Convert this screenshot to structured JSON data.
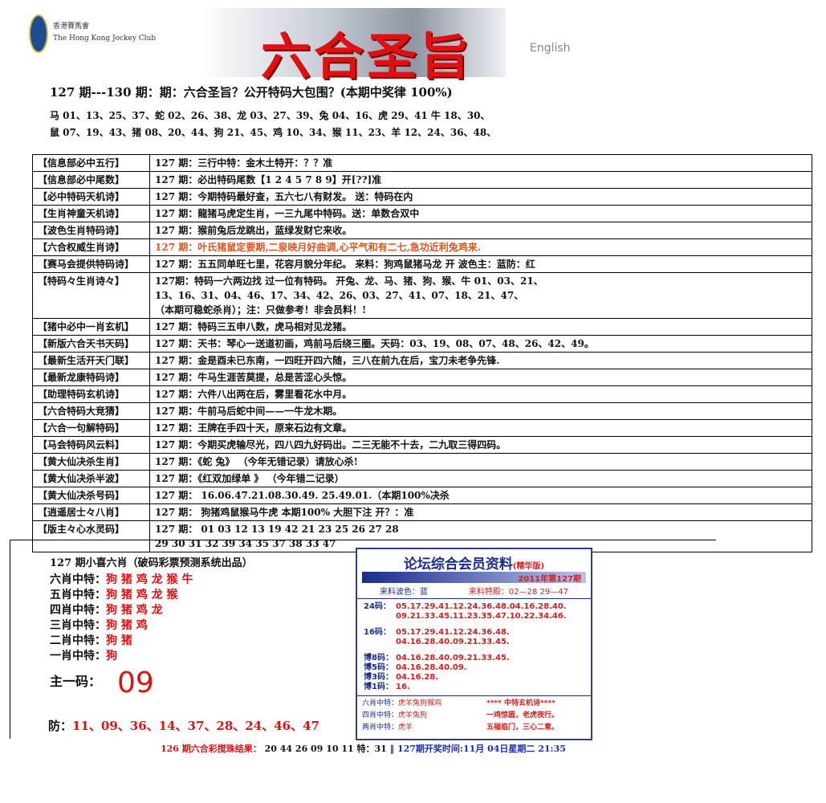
{
  "header": {
    "logo_lines": [
      "香港賽馬會",
      "The Hong Kong Jockey Club"
    ],
    "title": "六合圣旨",
    "english": "English"
  },
  "intro": {
    "heading": "127 期---130 期：期：六合圣旨？公开特码大包围？(本期中奖律 100%)",
    "lines": [
      "马 01、13、25、37、蛇 02、26、38、龙 03、27、39、兔 04、16、虎 29、41 牛 18、30、",
      "鼠 07、19、43、猪 08、20、44、狗 21、45、鸡 10、34、猴 11、23、羊 12、24、36、48、"
    ]
  },
  "table": {
    "rows": [
      {
        "label": "【信息部必中五行】",
        "lines": [
          "127 期：三行中特：金木土特开：？？准"
        ]
      },
      {
        "label": "【信息部必中尾数】",
        "lines": [
          "127 期：必出特码尾数【1 2 4 5 7 8 9】开[??]准"
        ]
      },
      {
        "label": "【必中特码天机诗】",
        "lines": [
          "127 期：今期特码最好查，五六七八有财发。 送：特码在内"
        ]
      },
      {
        "label": "【生肖神童天机诗】",
        "lines": [
          "127 期：龍猪马虎定生肖，一三九尾中特码。送：单数合双中"
        ]
      },
      {
        "label": "【波色生肖特码诗】",
        "lines": [
          "127 期：猴前兔后龙跳出，蓝绿发财它来收。"
        ]
      },
      {
        "label": "【六合权威生肖诗】",
        "lines": [
          "127 期：叶氏猪鼠定要期,二泉映月好曲调,心平气和有二七,急功近利兔鸡来."
        ],
        "color": "#e0531a"
      },
      {
        "label": "【赛马会提供特码诗】",
        "lines": [
          "127 期：五五同单旺七里，花容月貌分年纪。 来料：狗鸡鼠猪马龙 开 波色主：蓝防：红"
        ]
      },
      {
        "label": "【特码々生肖诗々】",
        "lines": [
          "127期：特码一六两边找 过一位有特码。 开兔、龙、马、猪、狗、猴、牛 01、03、21、",
          "13、16、31、04、46、17、34、42、26、03、27、41、07、18、21、47、",
          "（本期可稳蛇杀肖）；注：只做参考！非会员料！!"
        ]
      },
      {
        "label": "【猪中必中一肖玄机】",
        "lines": [
          "127 期：特码三五申八数，虎马相对见龙猪。"
        ]
      },
      {
        "label": "【新版六合天书天码】",
        "lines": [
          "127 期：天书：琴心一送道初画，鸡前马后绕三圈。天码：03、19、08、07、48、26、42、49。"
        ]
      },
      {
        "label": "【最新生活开天门联】",
        "lines": [
          "127 期：金是酉未已东南，一四旺开四六随，三八在前九在后，宝刀未老争先锋."
        ]
      },
      {
        "label": "【最新龙康特码诗】",
        "lines": [
          "127 期：牛马生涯苦莫提，总是苦涩心头惊。"
        ]
      },
      {
        "label": "【助理特码玄机诗】",
        "lines": [
          "127 期：六件八出两在后，雾里看花水中月。"
        ]
      },
      {
        "label": "【六合特码大竞猜】",
        "lines": [
          "127 期：牛前马后蛇中间——一牛龙木期。"
        ]
      },
      {
        "label": "【六合一句解特码】",
        "lines": [
          "127 期：王牌在手四十天，原来石边有文章。"
        ]
      },
      {
        "label": "【马会特码风云料】",
        "lines": [
          "127 期：今期买虎输尽光，四八四九好码出。二三无能不十去，二九取三得四码。"
        ]
      },
      {
        "label": "【黄大仙决杀生肖】",
        "lines": [
          "127 期：《蛇 兔》 （今年无错记录）请放心杀!"
        ]
      },
      {
        "label": "【黄大仙决杀半波】",
        "lines": [
          "127 期：《红双加绿单 》 （今年错二记录）"
        ]
      },
      {
        "label": "【黄大仙决杀号码】",
        "lines": [
          "127 期： 16.06.47.21.08.30.49. 25.49.01.（本期100%决杀"
        ]
      },
      {
        "label": "【逍遥居士々八肖】",
        "lines": [
          "127 期： 狗猪鸡鼠猴马牛虎 本期100% 大胆下注 开？：准"
        ]
      },
      {
        "label": "【版主々心水灵码】",
        "lines": [
          "127 期： 01 03 12 13 19 42 21 23 25 26 27 28",
          "29 30 31 32 39 34 35 37 38 33 47"
        ]
      }
    ]
  },
  "picks": {
    "title": "127 期小喜六肖（破码彩票预测系统出品）",
    "rows": [
      {
        "label": "六肖中特：",
        "value": "狗 猪 鸡 龙 猴 牛"
      },
      {
        "label": "五肖中特：",
        "value": "狗 猪 鸡 龙 猴"
      },
      {
        "label": "四肖中特：",
        "value": "狗 猪 鸡 龙"
      },
      {
        "label": "三肖中特：",
        "value": "狗 猪 鸡"
      },
      {
        "label": "二肖中特：",
        "value": "狗 猪"
      },
      {
        "label": "一肖中特：",
        "value": "狗"
      }
    ],
    "main_label": "主一码：",
    "main_value": "09",
    "guard_label": "防：",
    "guard_value": "11、09、36、14、37、28、24、46、47"
  },
  "box": {
    "title": "论坛综合会员资料",
    "badge": "(精华版)",
    "issue": "2011年第127期",
    "color_label": "来料波色：蓝",
    "special": "来料特殿：02—28 29—47",
    "rows": [
      {
        "label": "24码：",
        "lines": [
          "05.17.29.41.12.24.36.48.04.16.28.40.",
          "09.21.33.45.11.23.35.47.10.22.34.46."
        ]
      },
      {
        "label": "16码：",
        "lines": [
          "05.17.29.41.12.24.36.48.",
          "04.16.28.40.09.21.33.45."
        ]
      },
      {
        "label": "博8码：",
        "lines": [
          "04.16.28.40.09.21.33.45."
        ]
      },
      {
        "label": "博5码：",
        "lines": [
          "04.16.28.40.09."
        ]
      },
      {
        "label": "博3码：",
        "lines": [
          "04.16.28."
        ]
      },
      {
        "label": "博1码：",
        "lines": [
          "16."
        ]
      }
    ],
    "bottom": [
      {
        "label": "六肖中特：",
        "value": "虎羊兔狗猴鸡",
        "note": "****    中特玄机诗****"
      },
      {
        "label": "四肖中特：",
        "value": "虎羊兔狗",
        "note": "一鸡惊圆，老虎夜行。"
      },
      {
        "label": "两肖中特：",
        "value": "虎羊",
        "note": "五福临门，三心二意。"
      }
    ]
  },
  "footer": {
    "result_label": "126 期六合彩搅珠结果：",
    "result": "20 44 26 09 10 11 特：31",
    "draw_time": "‖ 127期开奖时间:11月 04日星期二 21:35"
  }
}
